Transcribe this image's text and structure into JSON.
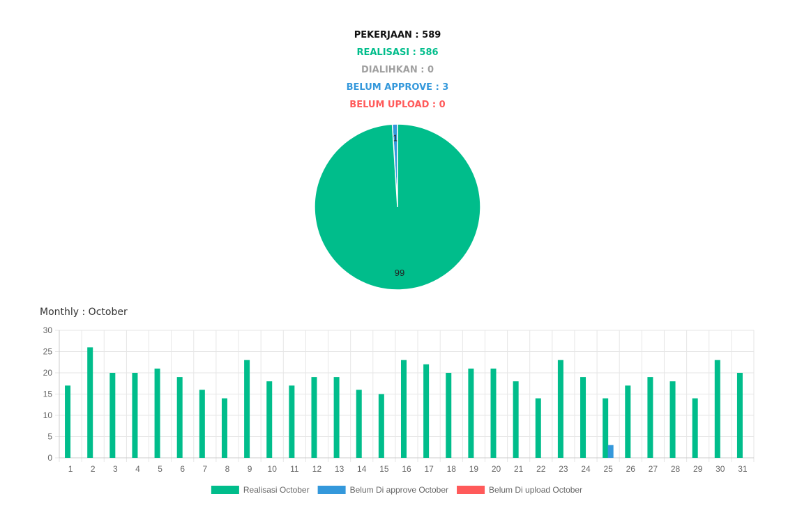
{
  "summary": {
    "pekerjaan": {
      "text": "PEKERJAAN : 589",
      "color": "#111111"
    },
    "realisasi": {
      "text": "REALISASI : 586",
      "color": "#00bd8b"
    },
    "dialihkan": {
      "text": "DIALIHKAN : 0",
      "color": "#a0a0a0"
    },
    "belum_approve": {
      "text": "BELUM APPROVE : 3",
      "color": "#3498db"
    },
    "belum_upload": {
      "text": "BELUM UPLOAD : 0",
      "color": "#ff5a5a"
    }
  },
  "monthly_title": "Monthly : October",
  "colors": {
    "realisasi": "#00bd8b",
    "belum_approve": "#3498db",
    "belum_upload": "#ff5a5a",
    "grid": "#e6e6e6",
    "axis_text": "#666666"
  },
  "chart_data": [
    {
      "type": "pie",
      "slices": [
        {
          "label": "99",
          "value": 99,
          "color": "#00bd8b"
        },
        {
          "label": "1",
          "value": 1,
          "color": "#3498db"
        }
      ]
    },
    {
      "type": "bar",
      "categories": [
        "1",
        "2",
        "3",
        "4",
        "5",
        "6",
        "7",
        "8",
        "9",
        "10",
        "11",
        "12",
        "13",
        "14",
        "15",
        "16",
        "17",
        "18",
        "19",
        "20",
        "21",
        "22",
        "23",
        "24",
        "25",
        "26",
        "27",
        "28",
        "29",
        "30",
        "31"
      ],
      "series": [
        {
          "name": "Realisasi October",
          "color": "#00bd8b",
          "values": [
            17,
            26,
            20,
            20,
            21,
            19,
            16,
            14,
            23,
            18,
            17,
            19,
            19,
            16,
            15,
            23,
            22,
            20,
            21,
            21,
            18,
            14,
            23,
            19,
            14,
            17,
            19,
            18,
            14,
            23,
            20
          ]
        },
        {
          "name": "Belum Di approve October",
          "color": "#3498db",
          "values": [
            0,
            0,
            0,
            0,
            0,
            0,
            0,
            0,
            0,
            0,
            0,
            0,
            0,
            0,
            0,
            0,
            0,
            0,
            0,
            0,
            0,
            0,
            0,
            0,
            3,
            0,
            0,
            0,
            0,
            0,
            0
          ]
        },
        {
          "name": "Belum Di upload October",
          "color": "#ff5a5a",
          "values": [
            0,
            0,
            0,
            0,
            0,
            0,
            0,
            0,
            0,
            0,
            0,
            0,
            0,
            0,
            0,
            0,
            0,
            0,
            0,
            0,
            0,
            0,
            0,
            0,
            0,
            0,
            0,
            0,
            0,
            0,
            0
          ]
        }
      ],
      "yticks": [
        "0",
        "5",
        "10",
        "15",
        "20",
        "25",
        "30"
      ],
      "ylim": [
        0,
        30
      ],
      "grid": true,
      "legend_position": "bottom"
    }
  ]
}
